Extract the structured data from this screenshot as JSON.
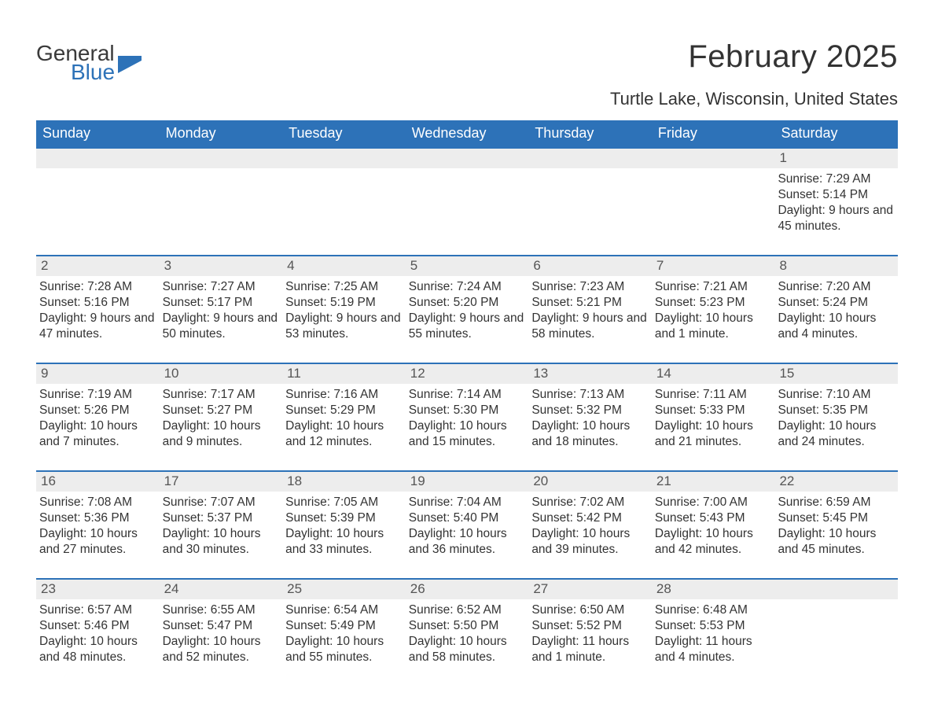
{
  "brand": {
    "general": "General",
    "blue": "Blue",
    "tri_color": "#2d72b8"
  },
  "title": "February 2025",
  "location": "Turtle Lake, Wisconsin, United States",
  "colors": {
    "header_bg": "#2d72b8",
    "header_text": "#ffffff",
    "daynum_bg": "#ededed",
    "week_border": "#2d72b8",
    "body_text": "#333333",
    "background": "#ffffff"
  },
  "dow": [
    "Sunday",
    "Monday",
    "Tuesday",
    "Wednesday",
    "Thursday",
    "Friday",
    "Saturday"
  ],
  "weeks": [
    [
      null,
      null,
      null,
      null,
      null,
      null,
      {
        "n": "1",
        "sr": "Sunrise: 7:29 AM",
        "ss": "Sunset: 5:14 PM",
        "dl": "Daylight: 9 hours and 45 minutes."
      }
    ],
    [
      {
        "n": "2",
        "sr": "Sunrise: 7:28 AM",
        "ss": "Sunset: 5:16 PM",
        "dl": "Daylight: 9 hours and 47 minutes."
      },
      {
        "n": "3",
        "sr": "Sunrise: 7:27 AM",
        "ss": "Sunset: 5:17 PM",
        "dl": "Daylight: 9 hours and 50 minutes."
      },
      {
        "n": "4",
        "sr": "Sunrise: 7:25 AM",
        "ss": "Sunset: 5:19 PM",
        "dl": "Daylight: 9 hours and 53 minutes."
      },
      {
        "n": "5",
        "sr": "Sunrise: 7:24 AM",
        "ss": "Sunset: 5:20 PM",
        "dl": "Daylight: 9 hours and 55 minutes."
      },
      {
        "n": "6",
        "sr": "Sunrise: 7:23 AM",
        "ss": "Sunset: 5:21 PM",
        "dl": "Daylight: 9 hours and 58 minutes."
      },
      {
        "n": "7",
        "sr": "Sunrise: 7:21 AM",
        "ss": "Sunset: 5:23 PM",
        "dl": "Daylight: 10 hours and 1 minute."
      },
      {
        "n": "8",
        "sr": "Sunrise: 7:20 AM",
        "ss": "Sunset: 5:24 PM",
        "dl": "Daylight: 10 hours and 4 minutes."
      }
    ],
    [
      {
        "n": "9",
        "sr": "Sunrise: 7:19 AM",
        "ss": "Sunset: 5:26 PM",
        "dl": "Daylight: 10 hours and 7 minutes."
      },
      {
        "n": "10",
        "sr": "Sunrise: 7:17 AM",
        "ss": "Sunset: 5:27 PM",
        "dl": "Daylight: 10 hours and 9 minutes."
      },
      {
        "n": "11",
        "sr": "Sunrise: 7:16 AM",
        "ss": "Sunset: 5:29 PM",
        "dl": "Daylight: 10 hours and 12 minutes."
      },
      {
        "n": "12",
        "sr": "Sunrise: 7:14 AM",
        "ss": "Sunset: 5:30 PM",
        "dl": "Daylight: 10 hours and 15 minutes."
      },
      {
        "n": "13",
        "sr": "Sunrise: 7:13 AM",
        "ss": "Sunset: 5:32 PM",
        "dl": "Daylight: 10 hours and 18 minutes."
      },
      {
        "n": "14",
        "sr": "Sunrise: 7:11 AM",
        "ss": "Sunset: 5:33 PM",
        "dl": "Daylight: 10 hours and 21 minutes."
      },
      {
        "n": "15",
        "sr": "Sunrise: 7:10 AM",
        "ss": "Sunset: 5:35 PM",
        "dl": "Daylight: 10 hours and 24 minutes."
      }
    ],
    [
      {
        "n": "16",
        "sr": "Sunrise: 7:08 AM",
        "ss": "Sunset: 5:36 PM",
        "dl": "Daylight: 10 hours and 27 minutes."
      },
      {
        "n": "17",
        "sr": "Sunrise: 7:07 AM",
        "ss": "Sunset: 5:37 PM",
        "dl": "Daylight: 10 hours and 30 minutes."
      },
      {
        "n": "18",
        "sr": "Sunrise: 7:05 AM",
        "ss": "Sunset: 5:39 PM",
        "dl": "Daylight: 10 hours and 33 minutes."
      },
      {
        "n": "19",
        "sr": "Sunrise: 7:04 AM",
        "ss": "Sunset: 5:40 PM",
        "dl": "Daylight: 10 hours and 36 minutes."
      },
      {
        "n": "20",
        "sr": "Sunrise: 7:02 AM",
        "ss": "Sunset: 5:42 PM",
        "dl": "Daylight: 10 hours and 39 minutes."
      },
      {
        "n": "21",
        "sr": "Sunrise: 7:00 AM",
        "ss": "Sunset: 5:43 PM",
        "dl": "Daylight: 10 hours and 42 minutes."
      },
      {
        "n": "22",
        "sr": "Sunrise: 6:59 AM",
        "ss": "Sunset: 5:45 PM",
        "dl": "Daylight: 10 hours and 45 minutes."
      }
    ],
    [
      {
        "n": "23",
        "sr": "Sunrise: 6:57 AM",
        "ss": "Sunset: 5:46 PM",
        "dl": "Daylight: 10 hours and 48 minutes."
      },
      {
        "n": "24",
        "sr": "Sunrise: 6:55 AM",
        "ss": "Sunset: 5:47 PM",
        "dl": "Daylight: 10 hours and 52 minutes."
      },
      {
        "n": "25",
        "sr": "Sunrise: 6:54 AM",
        "ss": "Sunset: 5:49 PM",
        "dl": "Daylight: 10 hours and 55 minutes."
      },
      {
        "n": "26",
        "sr": "Sunrise: 6:52 AM",
        "ss": "Sunset: 5:50 PM",
        "dl": "Daylight: 10 hours and 58 minutes."
      },
      {
        "n": "27",
        "sr": "Sunrise: 6:50 AM",
        "ss": "Sunset: 5:52 PM",
        "dl": "Daylight: 11 hours and 1 minute."
      },
      {
        "n": "28",
        "sr": "Sunrise: 6:48 AM",
        "ss": "Sunset: 5:53 PM",
        "dl": "Daylight: 11 hours and 4 minutes."
      },
      null
    ]
  ]
}
